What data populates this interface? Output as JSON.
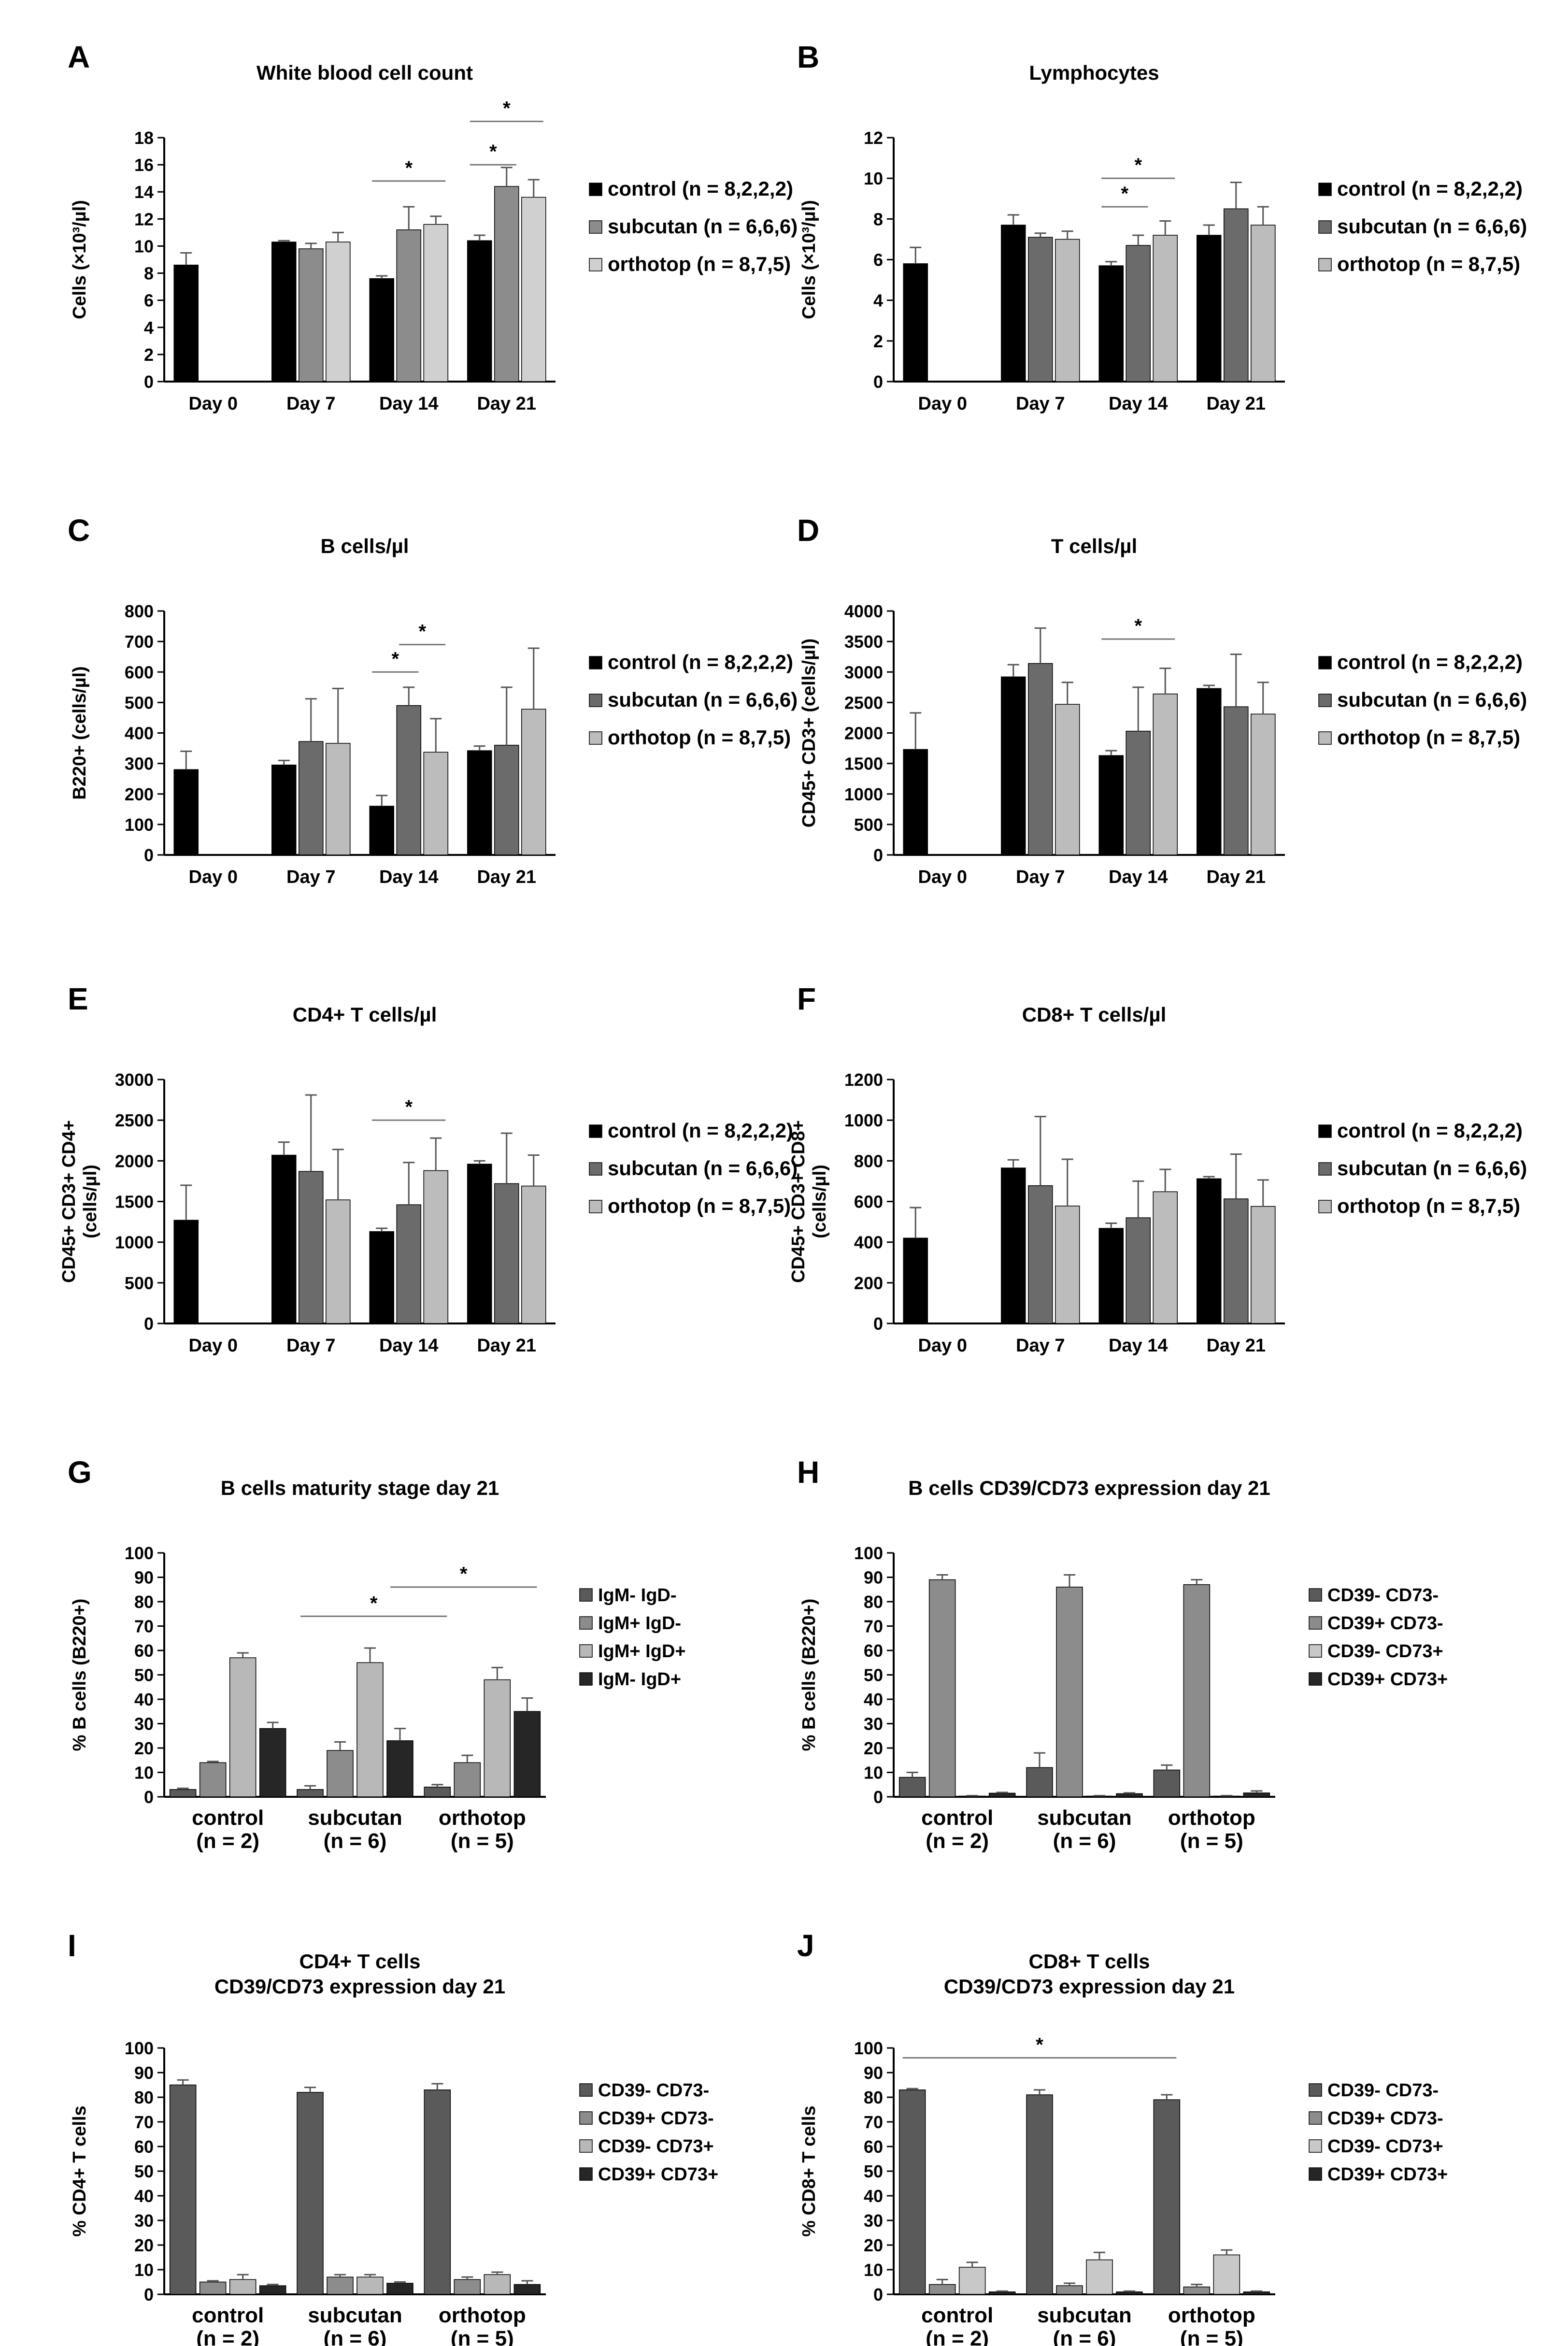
{
  "chart_data": [
    {
      "panel": "A",
      "type": "bar",
      "title": "White blood cell count",
      "ylabel": "Cells (×10³/µl)",
      "ylim": [
        0,
        18
      ],
      "yticks": [
        0,
        2,
        4,
        6,
        8,
        10,
        12,
        14,
        16,
        18
      ],
      "categories": [
        "Day 0",
        "Day 7",
        "Day 14",
        "Day 21"
      ],
      "series": [
        {
          "name": "control (n = 8,2,2,2)",
          "color": "#000000",
          "values": [
            8.6,
            10.3,
            7.6,
            10.4
          ],
          "errors": [
            0.9,
            0.1,
            0.2,
            0.4
          ]
        },
        {
          "name": "subcutan (n = 6,6,6)",
          "color": "#8c8c8c",
          "values": [
            null,
            9.8,
            11.2,
            14.4
          ],
          "errors": [
            null,
            0.4,
            1.7,
            1.4
          ]
        },
        {
          "name": "orthotop (n = 8,7,5)",
          "color": "#d0d0d0",
          "values": [
            null,
            10.3,
            11.6,
            13.6
          ],
          "errors": [
            null,
            0.7,
            0.6,
            1.3
          ]
        }
      ],
      "significance": [
        {
          "cat": 2,
          "from": 0,
          "to": 2,
          "level": 14.8,
          "label": "*"
        },
        {
          "cat": 3,
          "from": 0,
          "to": 1,
          "level": 16.0,
          "label": "*"
        },
        {
          "cat": 3,
          "from": 0,
          "to": 2,
          "level": 19.2,
          "label": "*"
        }
      ]
    },
    {
      "panel": "B",
      "type": "bar",
      "title": "Lymphocytes",
      "ylabel": "Cells (×10³/µl)",
      "ylim": [
        0,
        12
      ],
      "yticks": [
        0,
        2,
        4,
        6,
        8,
        10,
        12
      ],
      "categories": [
        "Day 0",
        "Day 7",
        "Day 14",
        "Day 21"
      ],
      "series": [
        {
          "name": "control (n = 8,2,2,2)",
          "color": "#000000",
          "values": [
            5.8,
            7.7,
            5.7,
            7.2
          ],
          "errors": [
            0.8,
            0.5,
            0.2,
            0.5
          ]
        },
        {
          "name": "subcutan (n = 6,6,6)",
          "color": "#6b6b6b",
          "values": [
            null,
            7.1,
            6.7,
            8.5
          ],
          "errors": [
            null,
            0.2,
            0.5,
            1.3
          ]
        },
        {
          "name": "orthotop (n = 8,7,5)",
          "color": "#bcbcbc",
          "values": [
            null,
            7.0,
            7.2,
            7.7
          ],
          "errors": [
            null,
            0.4,
            0.7,
            0.9
          ]
        }
      ],
      "significance": [
        {
          "cat": 2,
          "from": 0,
          "to": 1,
          "level": 8.6,
          "label": "*"
        },
        {
          "cat": 2,
          "from": 0,
          "to": 2,
          "level": 10.0,
          "label": "*"
        }
      ]
    },
    {
      "panel": "C",
      "type": "bar",
      "title": "B cells/µl",
      "ylabel": "B220+ (cells/µl)",
      "ylim": [
        0,
        800
      ],
      "yticks": [
        0,
        100,
        200,
        300,
        400,
        500,
        600,
        700,
        800
      ],
      "categories": [
        "Day 0",
        "Day 7",
        "Day 14",
        "Day 21"
      ],
      "series": [
        {
          "name": "control (n = 8,2,2,2)",
          "color": "#000000",
          "values": [
            280,
            295,
            160,
            342
          ],
          "errors": [
            60,
            15,
            35,
            15
          ]
        },
        {
          "name": "subcutan (n = 6,6,6)",
          "color": "#6b6b6b",
          "values": [
            null,
            372,
            490,
            360
          ],
          "errors": [
            null,
            140,
            60,
            190
          ]
        },
        {
          "name": "orthotop (n = 8,7,5)",
          "color": "#bcbcbc",
          "values": [
            null,
            366,
            337,
            478
          ],
          "errors": [
            null,
            180,
            110,
            200
          ]
        }
      ],
      "significance": [
        {
          "cat": 2,
          "from": 0,
          "to": 1,
          "level": 600,
          "label": "*"
        },
        {
          "cat": 2,
          "from": 1,
          "to": 2,
          "level": 690,
          "label": "*"
        }
      ]
    },
    {
      "panel": "D",
      "type": "bar",
      "title": "T cells/µl",
      "ylabel": "CD45+ CD3+ (cells/µl)",
      "ylim": [
        0,
        4000
      ],
      "yticks": [
        0,
        500,
        1000,
        1500,
        2000,
        2500,
        3000,
        3500,
        4000
      ],
      "categories": [
        "Day 0",
        "Day 7",
        "Day 14",
        "Day 21"
      ],
      "series": [
        {
          "name": "control (n = 8,2,2,2)",
          "color": "#000000",
          "values": [
            1730,
            2920,
            1630,
            2730
          ],
          "errors": [
            600,
            200,
            80,
            50
          ]
        },
        {
          "name": "subcutan (n = 6,6,6)",
          "color": "#6b6b6b",
          "values": [
            null,
            3140,
            2030,
            2430
          ],
          "errors": [
            null,
            580,
            720,
            860
          ]
        },
        {
          "name": "orthotop (n = 8,7,5)",
          "color": "#bcbcbc",
          "values": [
            null,
            2470,
            2640,
            2310
          ],
          "errors": [
            null,
            360,
            420,
            520
          ]
        }
      ],
      "significance": [
        {
          "cat": 2,
          "from": 0,
          "to": 2,
          "level": 3540,
          "label": "*"
        }
      ]
    },
    {
      "panel": "E",
      "type": "bar",
      "title": "CD4+ T cells/µl",
      "ylabel": "CD45+ CD3+ CD4+ (cells/µl)",
      "ylim": [
        0,
        3000
      ],
      "yticks": [
        0,
        500,
        1000,
        1500,
        2000,
        2500,
        3000
      ],
      "categories": [
        "Day 0",
        "Day 7",
        "Day 14",
        "Day 21"
      ],
      "series": [
        {
          "name": "control (n = 8,2,2,2)",
          "color": "#000000",
          "values": [
            1270,
            2070,
            1130,
            1960
          ],
          "errors": [
            430,
            160,
            40,
            40
          ]
        },
        {
          "name": "subcutan (n = 6,6,6)",
          "color": "#6b6b6b",
          "values": [
            null,
            1870,
            1460,
            1720
          ],
          "errors": [
            null,
            940,
            520,
            620
          ]
        },
        {
          "name": "orthotop (n = 8,7,5)",
          "color": "#bcbcbc",
          "values": [
            null,
            1520,
            1880,
            1690
          ],
          "errors": [
            null,
            620,
            400,
            380
          ]
        }
      ],
      "significance": [
        {
          "cat": 2,
          "from": 0,
          "to": 2,
          "level": 2500,
          "label": "*"
        }
      ]
    },
    {
      "panel": "F",
      "type": "bar",
      "title": "CD8+ T cells/µl",
      "ylabel": "CD45+ CD3+ CD8+ (cells/µl)",
      "ylim": [
        0,
        1200
      ],
      "yticks": [
        0,
        200,
        400,
        600,
        800,
        1000,
        1200
      ],
      "categories": [
        "Day 0",
        "Day 7",
        "Day 14",
        "Day 21"
      ],
      "series": [
        {
          "name": "control (n = 8,2,2,2)",
          "color": "#000000",
          "values": [
            420,
            765,
            468,
            712
          ],
          "errors": [
            150,
            40,
            25,
            10
          ]
        },
        {
          "name": "subcutan (n = 6,6,6)",
          "color": "#6b6b6b",
          "values": [
            null,
            678,
            520,
            613
          ],
          "errors": [
            null,
            340,
            180,
            220
          ]
        },
        {
          "name": "orthotop (n = 8,7,5)",
          "color": "#bcbcbc",
          "values": [
            null,
            578,
            648,
            576
          ],
          "errors": [
            null,
            230,
            110,
            130
          ]
        }
      ],
      "significance": []
    },
    {
      "panel": "G",
      "type": "bar",
      "title": "B cells maturity stage day 21",
      "ylabel": "% B cells (B220+)",
      "ylim": [
        0,
        100
      ],
      "yticks": [
        0,
        10,
        20,
        30,
        40,
        50,
        60,
        70,
        80,
        90,
        100
      ],
      "categories": [
        "control\n(n = 2)",
        "subcutan\n(n = 6)",
        "orthotop\n(n = 5)"
      ],
      "series": [
        {
          "name": "IgM- IgD-",
          "color": "#5a5a5a",
          "values": [
            3,
            3,
            4
          ],
          "errors": [
            0.5,
            1.5,
            1
          ]
        },
        {
          "name": "IgM+ IgD-",
          "color": "#8c8c8c",
          "values": [
            14,
            19,
            14
          ],
          "errors": [
            0.5,
            3.5,
            3
          ]
        },
        {
          "name": "IgM+ IgD+",
          "color": "#b8b8b8",
          "values": [
            57,
            55,
            48
          ],
          "errors": [
            2,
            6,
            5
          ]
        },
        {
          "name": "IgM- IgD+",
          "color": "#262626",
          "values": [
            28,
            23,
            35
          ],
          "errors": [
            2.5,
            5,
            5.5
          ]
        }
      ],
      "significance": [
        {
          "fromCat": 1,
          "fromSer": 0,
          "toCat": 2,
          "toSer": 0,
          "level": 74,
          "label": "*"
        },
        {
          "fromCat": 1,
          "fromSer": 3,
          "toCat": 2,
          "toSer": 3,
          "level": 86,
          "label": "*"
        }
      ]
    },
    {
      "panel": "H",
      "type": "bar",
      "title": "B cells CD39/CD73 expression day 21",
      "ylabel": "% B cells (B220+)",
      "ylim": [
        0,
        100
      ],
      "yticks": [
        0,
        10,
        20,
        30,
        40,
        50,
        60,
        70,
        80,
        90,
        100
      ],
      "categories": [
        "control\n(n = 2)",
        "subcutan\n(n = 6)",
        "orthotop\n(n = 5)"
      ],
      "series": [
        {
          "name": "CD39- CD73-",
          "color": "#5a5a5a",
          "values": [
            8,
            12,
            11
          ],
          "errors": [
            2,
            6,
            2
          ]
        },
        {
          "name": "CD39+ CD73-",
          "color": "#8c8c8c",
          "values": [
            89,
            86,
            87
          ],
          "errors": [
            2,
            5,
            2
          ]
        },
        {
          "name": "CD39- CD73+",
          "color": "#c8c8c8",
          "values": [
            0.3,
            0.3,
            0.3
          ],
          "errors": [
            0.2,
            0.2,
            0.2
          ]
        },
        {
          "name": "CD39+ CD73+",
          "color": "#262626",
          "values": [
            1.5,
            1.3,
            1.6
          ],
          "errors": [
            0.3,
            0.3,
            0.8
          ]
        }
      ],
      "significance": []
    },
    {
      "panel": "I",
      "type": "bar",
      "title": "CD4+ T cells\nCD39/CD73 expression day 21",
      "ylabel": "% CD4+ T cells",
      "ylim": [
        0,
        100
      ],
      "yticks": [
        0,
        10,
        20,
        30,
        40,
        50,
        60,
        70,
        80,
        90,
        100
      ],
      "categories": [
        "control\n(n = 2)",
        "subcutan\n(n = 6)",
        "orthotop\n(n = 5)"
      ],
      "series": [
        {
          "name": "CD39- CD73-",
          "color": "#5a5a5a",
          "values": [
            85,
            82,
            83
          ],
          "errors": [
            2,
            2,
            2.5
          ]
        },
        {
          "name": "CD39+ CD73-",
          "color": "#8c8c8c",
          "values": [
            5,
            7,
            6
          ],
          "errors": [
            0.5,
            1,
            1
          ]
        },
        {
          "name": "CD39- CD73+",
          "color": "#b8b8b8",
          "values": [
            6,
            7,
            8
          ],
          "errors": [
            2,
            1,
            1
          ]
        },
        {
          "name": "CD39+ CD73+",
          "color": "#262626",
          "values": [
            3.5,
            4.5,
            4
          ],
          "errors": [
            0.5,
            0.5,
            1.5
          ]
        }
      ],
      "significance": []
    },
    {
      "panel": "J",
      "type": "bar",
      "title": "CD8+ T cells\nCD39/CD73 expression day 21",
      "ylabel": "% CD8+ T cells",
      "ylim": [
        0,
        100
      ],
      "yticks": [
        0,
        10,
        20,
        30,
        40,
        50,
        60,
        70,
        80,
        90,
        100
      ],
      "categories": [
        "control\n(n = 2)",
        "subcutan\n(n = 6)",
        "orthotop\n(n = 5)"
      ],
      "series": [
        {
          "name": "CD39- CD73-",
          "color": "#5a5a5a",
          "values": [
            83,
            81,
            79
          ],
          "errors": [
            0.5,
            2,
            2
          ]
        },
        {
          "name": "CD39+ CD73-",
          "color": "#8c8c8c",
          "values": [
            4,
            3.5,
            3
          ],
          "errors": [
            2,
            1,
            1
          ]
        },
        {
          "name": "CD39- CD73+",
          "color": "#c8c8c8",
          "values": [
            11,
            14,
            16
          ],
          "errors": [
            2,
            3,
            2
          ]
        },
        {
          "name": "CD39+ CD73+",
          "color": "#262626",
          "values": [
            1,
            1,
            1
          ],
          "errors": [
            0.3,
            0.3,
            0.3
          ]
        }
      ],
      "significance": [
        {
          "fromCat": 0,
          "fromSer": 0,
          "toCat": 2,
          "toSer": 0,
          "level": 96,
          "label": "*"
        }
      ]
    }
  ]
}
